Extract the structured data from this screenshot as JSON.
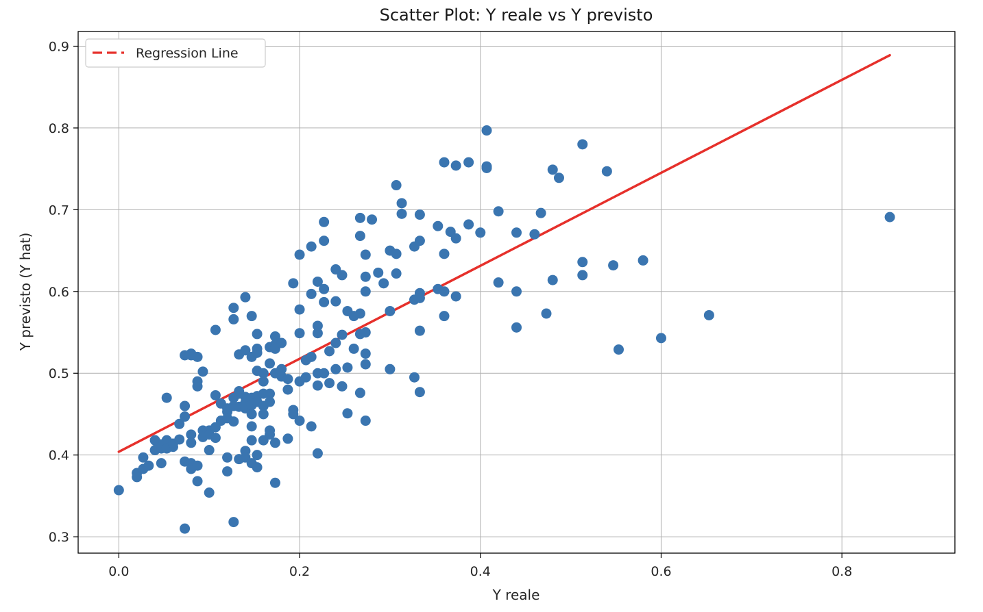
{
  "chart_data": {
    "type": "scatter",
    "title": "Scatter Plot: Y reale vs Y previsto",
    "xlabel": "Y reale",
    "ylabel": "Y previsto (Y hat)",
    "xlim": [
      -0.045,
      0.925
    ],
    "ylim": [
      0.28,
      0.918
    ],
    "xticks": [
      0.0,
      0.2,
      0.4,
      0.6,
      0.8
    ],
    "xtick_labels": [
      "0.0",
      "0.2",
      "0.4",
      "0.6",
      "0.8"
    ],
    "yticks": [
      0.3,
      0.4,
      0.5,
      0.6,
      0.7,
      0.8,
      0.9
    ],
    "ytick_labels": [
      "0.3",
      "0.4",
      "0.5",
      "0.6",
      "0.7",
      "0.8",
      "0.9"
    ],
    "grid": true,
    "legend_position": "upper-left",
    "colors": {
      "points": "#3a75b0",
      "line": "#e6302b",
      "grid": "#b0b0b0",
      "axes": "#000000"
    },
    "series": [
      {
        "type": "scatter",
        "points": [
          [
            0.0,
            0.357
          ],
          [
            0.02,
            0.373
          ],
          [
            0.02,
            0.378
          ],
          [
            0.027,
            0.383
          ],
          [
            0.027,
            0.397
          ],
          [
            0.033,
            0.387
          ],
          [
            0.04,
            0.418
          ],
          [
            0.04,
            0.406
          ],
          [
            0.047,
            0.413
          ],
          [
            0.047,
            0.408
          ],
          [
            0.047,
            0.41
          ],
          [
            0.047,
            0.39
          ],
          [
            0.053,
            0.418
          ],
          [
            0.053,
            0.408
          ],
          [
            0.06,
            0.41
          ],
          [
            0.06,
            0.414
          ],
          [
            0.053,
            0.47
          ],
          [
            0.067,
            0.419
          ],
          [
            0.067,
            0.438
          ],
          [
            0.073,
            0.447
          ],
          [
            0.073,
            0.46
          ],
          [
            0.073,
            0.392
          ],
          [
            0.073,
            0.31
          ],
          [
            0.08,
            0.39
          ],
          [
            0.08,
            0.383
          ],
          [
            0.08,
            0.425
          ],
          [
            0.08,
            0.415
          ],
          [
            0.087,
            0.387
          ],
          [
            0.087,
            0.368
          ],
          [
            0.087,
            0.484
          ],
          [
            0.087,
            0.49
          ],
          [
            0.073,
            0.522
          ],
          [
            0.08,
            0.522
          ],
          [
            0.08,
            0.524
          ],
          [
            0.087,
            0.52
          ],
          [
            0.093,
            0.502
          ],
          [
            0.093,
            0.43
          ],
          [
            0.093,
            0.422
          ],
          [
            0.1,
            0.43
          ],
          [
            0.1,
            0.425
          ],
          [
            0.1,
            0.406
          ],
          [
            0.1,
            0.354
          ],
          [
            0.107,
            0.421
          ],
          [
            0.107,
            0.434
          ],
          [
            0.107,
            0.473
          ],
          [
            0.107,
            0.553
          ],
          [
            0.113,
            0.463
          ],
          [
            0.113,
            0.442
          ],
          [
            0.12,
            0.445
          ],
          [
            0.12,
            0.453
          ],
          [
            0.12,
            0.457
          ],
          [
            0.12,
            0.397
          ],
          [
            0.12,
            0.38
          ],
          [
            0.127,
            0.318
          ],
          [
            0.127,
            0.441
          ],
          [
            0.127,
            0.47
          ],
          [
            0.127,
            0.46
          ],
          [
            0.127,
            0.566
          ],
          [
            0.127,
            0.58
          ],
          [
            0.133,
            0.475
          ],
          [
            0.133,
            0.478
          ],
          [
            0.133,
            0.459
          ],
          [
            0.133,
            0.395
          ],
          [
            0.133,
            0.523
          ],
          [
            0.14,
            0.471
          ],
          [
            0.14,
            0.457
          ],
          [
            0.14,
            0.464
          ],
          [
            0.14,
            0.405
          ],
          [
            0.14,
            0.397
          ],
          [
            0.14,
            0.528
          ],
          [
            0.14,
            0.593
          ],
          [
            0.147,
            0.47
          ],
          [
            0.147,
            0.461
          ],
          [
            0.147,
            0.45
          ],
          [
            0.147,
            0.435
          ],
          [
            0.147,
            0.418
          ],
          [
            0.147,
            0.39
          ],
          [
            0.147,
            0.52
          ],
          [
            0.147,
            0.57
          ],
          [
            0.153,
            0.548
          ],
          [
            0.153,
            0.53
          ],
          [
            0.153,
            0.525
          ],
          [
            0.153,
            0.503
          ],
          [
            0.153,
            0.472
          ],
          [
            0.153,
            0.465
          ],
          [
            0.153,
            0.4
          ],
          [
            0.153,
            0.385
          ],
          [
            0.16,
            0.5
          ],
          [
            0.16,
            0.49
          ],
          [
            0.16,
            0.475
          ],
          [
            0.16,
            0.46
          ],
          [
            0.16,
            0.45
          ],
          [
            0.16,
            0.418
          ],
          [
            0.167,
            0.475
          ],
          [
            0.167,
            0.465
          ],
          [
            0.167,
            0.43
          ],
          [
            0.167,
            0.425
          ],
          [
            0.167,
            0.512
          ],
          [
            0.167,
            0.532
          ],
          [
            0.173,
            0.545
          ],
          [
            0.173,
            0.535
          ],
          [
            0.173,
            0.53
          ],
          [
            0.173,
            0.5
          ],
          [
            0.173,
            0.415
          ],
          [
            0.173,
            0.366
          ],
          [
            0.18,
            0.537
          ],
          [
            0.18,
            0.505
          ],
          [
            0.18,
            0.496
          ],
          [
            0.187,
            0.493
          ],
          [
            0.187,
            0.48
          ],
          [
            0.187,
            0.42
          ],
          [
            0.193,
            0.455
          ],
          [
            0.193,
            0.45
          ],
          [
            0.193,
            0.61
          ],
          [
            0.2,
            0.645
          ],
          [
            0.2,
            0.578
          ],
          [
            0.2,
            0.549
          ],
          [
            0.2,
            0.49
          ],
          [
            0.2,
            0.442
          ],
          [
            0.207,
            0.516
          ],
          [
            0.207,
            0.495
          ],
          [
            0.213,
            0.52
          ],
          [
            0.213,
            0.435
          ],
          [
            0.213,
            0.597
          ],
          [
            0.213,
            0.655
          ],
          [
            0.22,
            0.612
          ],
          [
            0.22,
            0.558
          ],
          [
            0.22,
            0.549
          ],
          [
            0.22,
            0.5
          ],
          [
            0.22,
            0.485
          ],
          [
            0.22,
            0.402
          ],
          [
            0.227,
            0.685
          ],
          [
            0.227,
            0.662
          ],
          [
            0.227,
            0.603
          ],
          [
            0.227,
            0.587
          ],
          [
            0.227,
            0.5
          ],
          [
            0.233,
            0.527
          ],
          [
            0.233,
            0.488
          ],
          [
            0.24,
            0.627
          ],
          [
            0.24,
            0.588
          ],
          [
            0.24,
            0.537
          ],
          [
            0.24,
            0.505
          ],
          [
            0.247,
            0.62
          ],
          [
            0.247,
            0.547
          ],
          [
            0.247,
            0.484
          ],
          [
            0.253,
            0.576
          ],
          [
            0.253,
            0.507
          ],
          [
            0.253,
            0.451
          ],
          [
            0.26,
            0.57
          ],
          [
            0.26,
            0.53
          ],
          [
            0.267,
            0.69
          ],
          [
            0.267,
            0.668
          ],
          [
            0.267,
            0.573
          ],
          [
            0.267,
            0.548
          ],
          [
            0.267,
            0.476
          ],
          [
            0.273,
            0.645
          ],
          [
            0.273,
            0.618
          ],
          [
            0.273,
            0.6
          ],
          [
            0.273,
            0.55
          ],
          [
            0.273,
            0.524
          ],
          [
            0.273,
            0.511
          ],
          [
            0.273,
            0.442
          ],
          [
            0.28,
            0.688
          ],
          [
            0.287,
            0.623
          ],
          [
            0.293,
            0.61
          ],
          [
            0.3,
            0.65
          ],
          [
            0.3,
            0.576
          ],
          [
            0.3,
            0.505
          ],
          [
            0.307,
            0.646
          ],
          [
            0.307,
            0.622
          ],
          [
            0.307,
            0.73
          ],
          [
            0.313,
            0.708
          ],
          [
            0.313,
            0.695
          ],
          [
            0.327,
            0.655
          ],
          [
            0.327,
            0.59
          ],
          [
            0.327,
            0.495
          ],
          [
            0.333,
            0.694
          ],
          [
            0.333,
            0.662
          ],
          [
            0.333,
            0.598
          ],
          [
            0.333,
            0.592
          ],
          [
            0.333,
            0.552
          ],
          [
            0.333,
            0.477
          ],
          [
            0.353,
            0.68
          ],
          [
            0.353,
            0.603
          ],
          [
            0.36,
            0.758
          ],
          [
            0.36,
            0.646
          ],
          [
            0.36,
            0.6
          ],
          [
            0.36,
            0.57
          ],
          [
            0.367,
            0.673
          ],
          [
            0.373,
            0.754
          ],
          [
            0.373,
            0.665
          ],
          [
            0.373,
            0.594
          ],
          [
            0.387,
            0.758
          ],
          [
            0.387,
            0.682
          ],
          [
            0.4,
            0.672
          ],
          [
            0.407,
            0.797
          ],
          [
            0.407,
            0.753
          ],
          [
            0.407,
            0.751
          ],
          [
            0.42,
            0.698
          ],
          [
            0.42,
            0.611
          ],
          [
            0.44,
            0.672
          ],
          [
            0.44,
            0.6
          ],
          [
            0.44,
            0.556
          ],
          [
            0.46,
            0.67
          ],
          [
            0.467,
            0.696
          ],
          [
            0.473,
            0.573
          ],
          [
            0.48,
            0.749
          ],
          [
            0.48,
            0.614
          ],
          [
            0.487,
            0.739
          ],
          [
            0.513,
            0.78
          ],
          [
            0.513,
            0.636
          ],
          [
            0.513,
            0.62
          ],
          [
            0.54,
            0.747
          ],
          [
            0.547,
            0.632
          ],
          [
            0.553,
            0.529
          ],
          [
            0.58,
            0.638
          ],
          [
            0.6,
            0.543
          ],
          [
            0.653,
            0.571
          ],
          [
            0.853,
            0.691
          ]
        ]
      },
      {
        "type": "line",
        "name": "Regression Line",
        "points": [
          [
            0.0,
            0.404
          ],
          [
            0.853,
            0.889
          ]
        ]
      }
    ]
  }
}
